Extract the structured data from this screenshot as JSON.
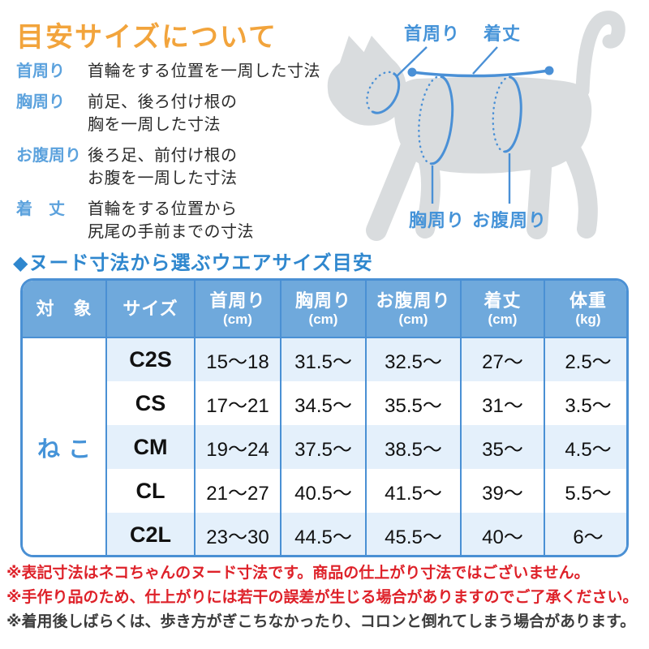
{
  "page_title": "目安サイズについて",
  "definitions": [
    {
      "label": "首周り",
      "desc": "首輪をする位置を一周した寸法"
    },
    {
      "label": "胸周り",
      "desc": "前足、後ろ付け根の\n胸を一周した寸法"
    },
    {
      "label": "お腹周り",
      "desc": "後ろ足、前付け根の\nお腹を一周した寸法"
    },
    {
      "label": "着　丈",
      "desc": "首輪をする位置から\n尻尾の手前までの寸法"
    }
  ],
  "figure": {
    "labels": {
      "neck": "首周り",
      "length": "着丈",
      "chest": "胸周り",
      "belly": "お腹周り"
    }
  },
  "table": {
    "title": "◆ヌード寸法から選ぶウエアサイズ目安",
    "columns": [
      {
        "label": "対　象",
        "unit": ""
      },
      {
        "label": "サイズ",
        "unit": ""
      },
      {
        "label": "首周り",
        "unit": "(cm)"
      },
      {
        "label": "胸周り",
        "unit": "(cm)"
      },
      {
        "label": "お腹周り",
        "unit": "(cm)"
      },
      {
        "label": "着丈",
        "unit": "(cm)"
      },
      {
        "label": "体重",
        "unit": "(kg)"
      }
    ],
    "target_label": "ねこ",
    "rows": [
      {
        "size": "C2S",
        "values": [
          "15〜18",
          "31.5〜",
          "32.5〜",
          "27〜",
          "2.5〜"
        ]
      },
      {
        "size": "CS",
        "values": [
          "17〜21",
          "34.5〜",
          "35.5〜",
          "31〜",
          "3.5〜"
        ]
      },
      {
        "size": "CM",
        "values": [
          "19〜24",
          "37.5〜",
          "38.5〜",
          "35〜",
          "4.5〜"
        ]
      },
      {
        "size": "CL",
        "values": [
          "21〜27",
          "40.5〜",
          "41.5〜",
          "39〜",
          "5.5〜"
        ]
      },
      {
        "size": "C2L",
        "values": [
          "23〜30",
          "44.5〜",
          "45.5〜",
          "40〜",
          "6〜"
        ]
      }
    ]
  },
  "notes": [
    {
      "text": "※表記寸法はネコちゃんのヌード寸法です。商品の仕上がり寸法ではございません。",
      "color": "#DE2129"
    },
    {
      "text": "※手作り品のため、仕上がりには若干の誤差が生じる場合がありますのでご了承ください。",
      "color": "#DE2129"
    },
    {
      "text": "※着用後しばらくは、歩き方がぎこちなかったり、コロンと倒れてしまう場合があります。",
      "color": "#3C3C3C"
    }
  ],
  "colors": {
    "title_orange": "#F2A43C",
    "definition_label_blue": "#5CA2DD",
    "section_heading_blue": "#2F87CE",
    "table_border_blue": "#4A90D4",
    "table_header_bg": "#6FA9DC",
    "table_stripe_bg": "#E4F0FB",
    "annotation_blue": "#4A90D6",
    "cat_silhouette_gray": "#D9DCDE",
    "note_red": "#DE2129",
    "note_dark": "#3C3C3C"
  }
}
